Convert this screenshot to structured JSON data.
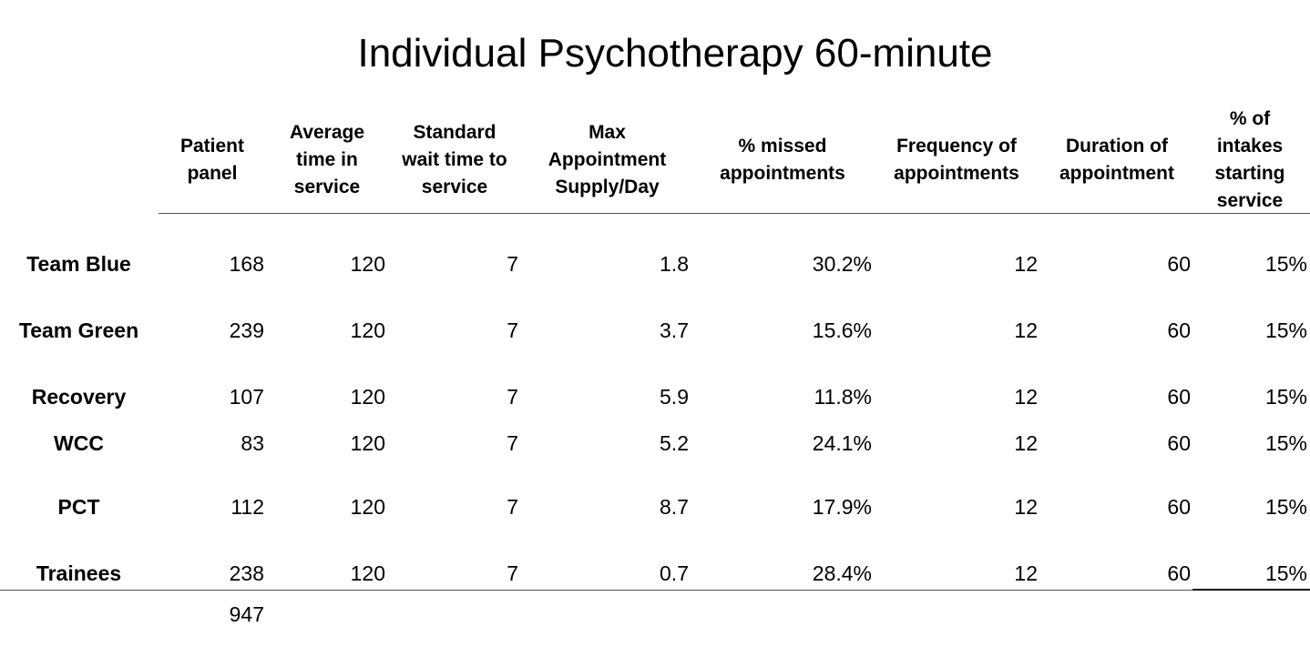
{
  "title": "Individual Psychotherapy 60-minute",
  "columns": [
    "Patient\npanel",
    "Average\ntime in\nservice",
    "Standard\nwait time to\nservice",
    "Max\nAppointment\nSupply/Day",
    "% missed\nappointments",
    "Frequency of\nappointments",
    "Duration of\nappointment",
    "% of\nintakes\nstarting\nservice"
  ],
  "rows": [
    {
      "label": "Team Blue",
      "values": [
        "168",
        "120",
        "7",
        "1.8",
        "30.2%",
        "12",
        "60",
        "15%"
      ]
    },
    {
      "label": "Team Green",
      "values": [
        "239",
        "120",
        "7",
        "3.7",
        "15.6%",
        "12",
        "60",
        "15%"
      ]
    },
    {
      "label": "Recovery",
      "values": [
        "107",
        "120",
        "7",
        "5.9",
        "11.8%",
        "12",
        "60",
        "15%"
      ]
    },
    {
      "label": "WCC",
      "values": [
        "83",
        "120",
        "7",
        "5.2",
        "24.1%",
        "12",
        "60",
        "15%"
      ]
    },
    {
      "label": "PCT",
      "values": [
        "112",
        "120",
        "7",
        "8.7",
        "17.9%",
        "12",
        "60",
        "15%"
      ]
    },
    {
      "label": "Trainees",
      "values": [
        "238",
        "120",
        "7",
        "0.7",
        "28.4%",
        "12",
        "60",
        "15%"
      ]
    }
  ],
  "total": "947"
}
